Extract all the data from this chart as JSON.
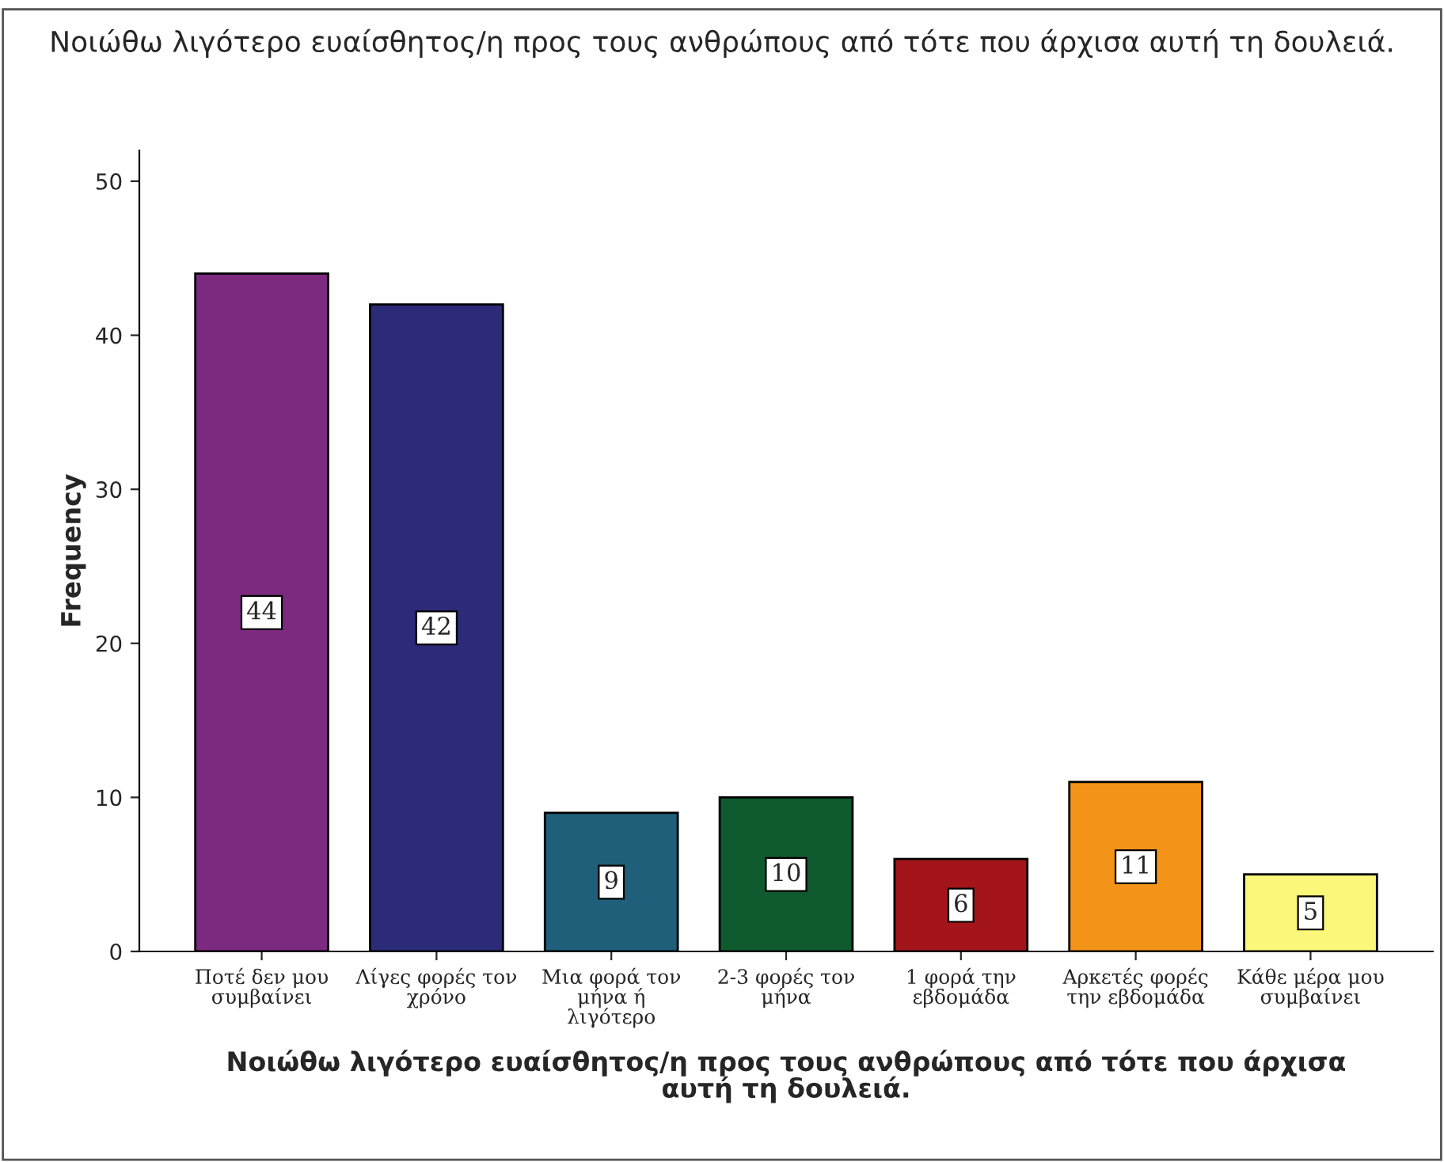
{
  "chart_data": {
    "type": "bar",
    "title": "Νοιώθω λιγότερο ευαίσθητος/η προς τους ανθρώπους από τότε που άρχισα αυτή τη δουλειά.",
    "xlabel": "Νοιώθω λιγότερο ευαίσθητος/η προς τους ανθρώπους από τότε που άρχισα\nαυτή τη δουλειά.",
    "ylabel": "Frequency",
    "categories": [
      "Ποτέ δεν μου\nσυμβαίνει",
      "Λίγες φορές τον\nχρόνο",
      "Μια φορά τον\nμήνα ή\nλιγότερο",
      "2-3 φορές τον\nμήνα",
      "1 φορά την\nεβδομάδα",
      "Αρκετές φορές\nτην εβδομάδα",
      "Κάθε μέρα μου\nσυμβαίνει"
    ],
    "values": [
      44,
      42,
      9,
      10,
      6,
      11,
      5
    ],
    "colors": [
      "#7b2a7f",
      "#2b2b77",
      "#1f5f7a",
      "#0f5a2e",
      "#a3151a",
      "#f39419",
      "#fbf77a"
    ],
    "ylim": [
      0,
      52
    ],
    "yticks": [
      0,
      10,
      20,
      30,
      40,
      50
    ],
    "data_labels": true,
    "grid": false,
    "legend": false
  }
}
